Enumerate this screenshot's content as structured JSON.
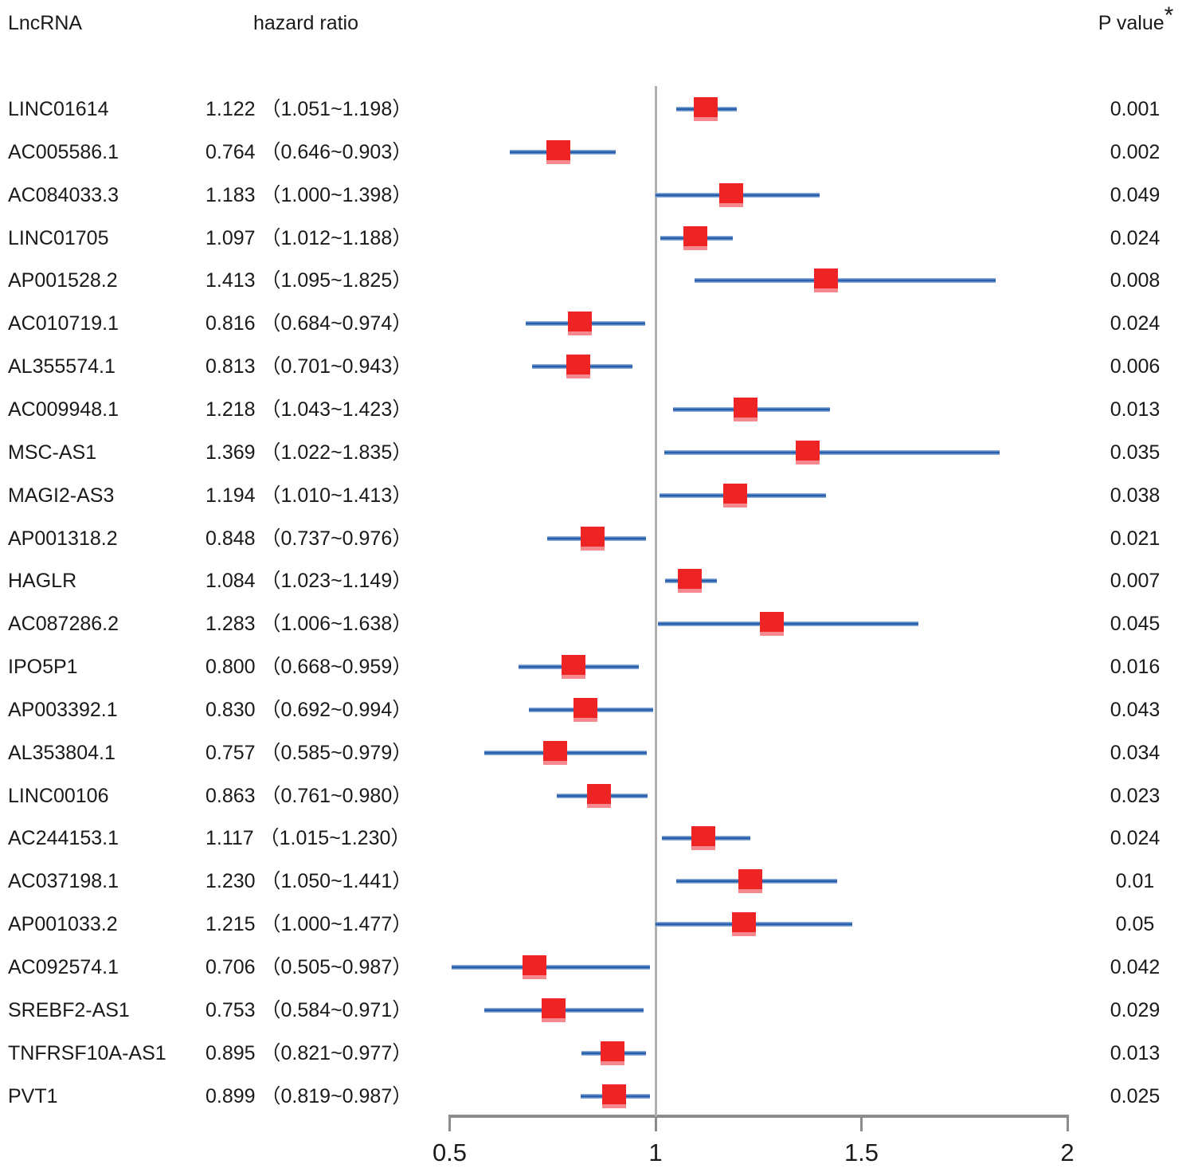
{
  "header": {
    "lncrna": "LncRNA",
    "hazard_ratio": "hazard ratio",
    "p_value": "P value",
    "p_value_asterisk": "*"
  },
  "colors": {
    "marker_red": "#ee2424",
    "marker_fringe_pink": "#f5898d",
    "ci_line_blue": "#2a5fab",
    "ci_line_edge_blue": "#8fb0d9",
    "reference_line_gray": "#b0b0b0",
    "axis_gray": "#8c8c8c",
    "text": "#1a1a1a"
  },
  "chart_data": {
    "type": "scatter",
    "subtype": "forest-plot",
    "title": "",
    "xlabel": "",
    "ylabel": "",
    "legend": "none",
    "grid": false,
    "x_axis": {
      "range": [
        0.5,
        2
      ],
      "ticks": [
        0.5,
        1,
        1.5,
        2
      ],
      "tick_labels": [
        "0.5",
        "1",
        "1.5",
        "2"
      ],
      "reference_line_at": 1
    },
    "rows": [
      {
        "name": "LINC01614",
        "hr": 1.122,
        "ci_low": 1.051,
        "ci_high": 1.198,
        "hr_label": "1.122 （1.051~1.198）",
        "p": "0.001"
      },
      {
        "name": "AC005586.1",
        "hr": 0.764,
        "ci_low": 0.646,
        "ci_high": 0.903,
        "hr_label": "0.764 （0.646~0.903）",
        "p": "0.002"
      },
      {
        "name": "AC084033.3",
        "hr": 1.183,
        "ci_low": 1.0,
        "ci_high": 1.398,
        "hr_label": "1.183 （1.000~1.398）",
        "p": "0.049"
      },
      {
        "name": "LINC01705",
        "hr": 1.097,
        "ci_low": 1.012,
        "ci_high": 1.188,
        "hr_label": "1.097 （1.012~1.188）",
        "p": "0.024"
      },
      {
        "name": "AP001528.2",
        "hr": 1.413,
        "ci_low": 1.095,
        "ci_high": 1.825,
        "hr_label": "1.413 （1.095~1.825）",
        "p": "0.008"
      },
      {
        "name": "AC010719.1",
        "hr": 0.816,
        "ci_low": 0.684,
        "ci_high": 0.974,
        "hr_label": "0.816 （0.684~0.974）",
        "p": "0.024"
      },
      {
        "name": "AL355574.1",
        "hr": 0.813,
        "ci_low": 0.701,
        "ci_high": 0.943,
        "hr_label": "0.813 （0.701~0.943）",
        "p": "0.006"
      },
      {
        "name": "AC009948.1",
        "hr": 1.218,
        "ci_low": 1.043,
        "ci_high": 1.423,
        "hr_label": "1.218 （1.043~1.423）",
        "p": "0.013"
      },
      {
        "name": "MSC-AS1",
        "hr": 1.369,
        "ci_low": 1.022,
        "ci_high": 1.835,
        "hr_label": "1.369 （1.022~1.835）",
        "p": "0.035"
      },
      {
        "name": "MAGI2-AS3",
        "hr": 1.194,
        "ci_low": 1.01,
        "ci_high": 1.413,
        "hr_label": "1.194 （1.010~1.413）",
        "p": "0.038"
      },
      {
        "name": "AP001318.2",
        "hr": 0.848,
        "ci_low": 0.737,
        "ci_high": 0.976,
        "hr_label": "0.848 （0.737~0.976）",
        "p": "0.021"
      },
      {
        "name": "HAGLR",
        "hr": 1.084,
        "ci_low": 1.023,
        "ci_high": 1.149,
        "hr_label": "1.084 （1.023~1.149）",
        "p": "0.007"
      },
      {
        "name": "AC087286.2",
        "hr": 1.283,
        "ci_low": 1.006,
        "ci_high": 1.638,
        "hr_label": "1.283 （1.006~1.638）",
        "p": "0.045"
      },
      {
        "name": "IPO5P1",
        "hr": 0.8,
        "ci_low": 0.668,
        "ci_high": 0.959,
        "hr_label": "0.800 （0.668~0.959）",
        "p": "0.016"
      },
      {
        "name": "AP003392.1",
        "hr": 0.83,
        "ci_low": 0.692,
        "ci_high": 0.994,
        "hr_label": "0.830 （0.692~0.994）",
        "p": "0.043"
      },
      {
        "name": "AL353804.1",
        "hr": 0.757,
        "ci_low": 0.585,
        "ci_high": 0.979,
        "hr_label": "0.757 （0.585~0.979）",
        "p": "0.034"
      },
      {
        "name": "LINC00106",
        "hr": 0.863,
        "ci_low": 0.761,
        "ci_high": 0.98,
        "hr_label": "0.863 （0.761~0.980）",
        "p": "0.023"
      },
      {
        "name": "AC244153.1",
        "hr": 1.117,
        "ci_low": 1.015,
        "ci_high": 1.23,
        "hr_label": "1.117 （1.015~1.230）",
        "p": "0.024"
      },
      {
        "name": "AC037198.1",
        "hr": 1.23,
        "ci_low": 1.05,
        "ci_high": 1.441,
        "hr_label": "1.230 （1.050~1.441）",
        "p": "0.01"
      },
      {
        "name": "AP001033.2",
        "hr": 1.215,
        "ci_low": 1.0,
        "ci_high": 1.477,
        "hr_label": "1.215 （1.000~1.477）",
        "p": "0.05"
      },
      {
        "name": "AC092574.1",
        "hr": 0.706,
        "ci_low": 0.505,
        "ci_high": 0.987,
        "hr_label": "0.706 （0.505~0.987）",
        "p": "0.042"
      },
      {
        "name": "SREBF2-AS1",
        "hr": 0.753,
        "ci_low": 0.584,
        "ci_high": 0.971,
        "hr_label": "0.753 （0.584~0.971）",
        "p": "0.029"
      },
      {
        "name": "TNFRSF10A-AS1",
        "hr": 0.895,
        "ci_low": 0.821,
        "ci_high": 0.977,
        "hr_label": "0.895 （0.821~0.977）",
        "p": "0.013"
      },
      {
        "name": "PVT1",
        "hr": 0.899,
        "ci_low": 0.819,
        "ci_high": 0.987,
        "hr_label": "0.899 （0.819~0.987）",
        "p": "0.025"
      }
    ]
  }
}
